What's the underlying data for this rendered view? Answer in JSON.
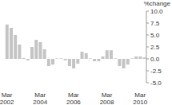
{
  "chart_data": {
    "type": "bar",
    "y_label": "%change",
    "categories": [
      "Mar 2002",
      null,
      null,
      null,
      null,
      null,
      null,
      null,
      "Mar 2004",
      null,
      null,
      null,
      null,
      null,
      null,
      null,
      "Mar 2006",
      null,
      null,
      null,
      null,
      null,
      null,
      null,
      "Mar 2008",
      null,
      null,
      null,
      null,
      null,
      null,
      null,
      "Mar 2010",
      null
    ],
    "values": [
      7.2,
      6.5,
      5.0,
      3.0,
      0.2,
      -0.3,
      2.5,
      4.0,
      3.5,
      2.0,
      -1.5,
      -1.2,
      0.1,
      0.1,
      -0.3,
      -1.5,
      -2.0,
      -1.0,
      1.5,
      1.2,
      0.1,
      -0.5,
      -0.5,
      0.5,
      1.8,
      1.8,
      0.1,
      -1.5,
      -2.0,
      -1.2,
      0.1,
      0.5,
      0.5,
      0.3
    ],
    "color": "#c4c4c4",
    "ylim": [
      -5.0,
      10.0
    ],
    "yticks": [
      {
        "value": -5.0,
        "label": "-5.0"
      },
      {
        "value": -2.5,
        "label": "-2.5"
      },
      {
        "value": 0,
        "label": "0.0"
      },
      {
        "value": 2.5,
        "label": "2.5"
      },
      {
        "value": 5.0,
        "label": "5.0"
      },
      {
        "value": 7.5,
        "label": "7.5"
      },
      {
        "value": 10.0,
        "label": "10.0"
      }
    ],
    "grid": false
  }
}
